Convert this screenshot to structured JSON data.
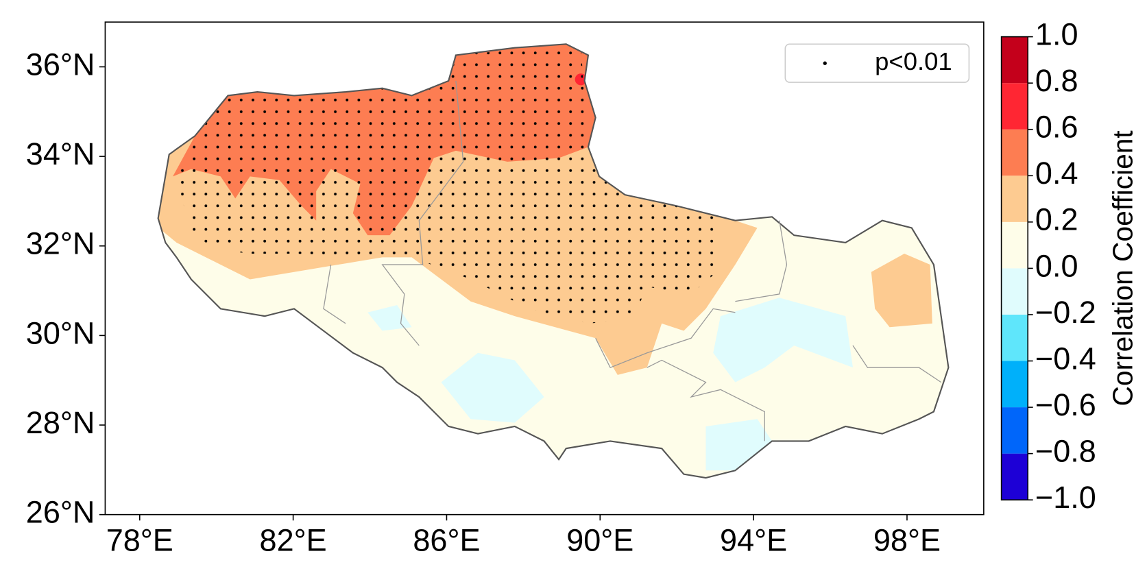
{
  "chart_data": {
    "type": "map",
    "xlim": [
      77.1,
      100
    ],
    "ylim": [
      26,
      37
    ],
    "xticks": [
      {
        "value": 78,
        "label": "78°E"
      },
      {
        "value": 82,
        "label": "82°E"
      },
      {
        "value": 86,
        "label": "86°E"
      },
      {
        "value": 90,
        "label": "90°E"
      },
      {
        "value": 94,
        "label": "94°E"
      },
      {
        "value": 98,
        "label": "98°E"
      }
    ],
    "yticks": [
      {
        "value": 26,
        "label": "26°N"
      },
      {
        "value": 28,
        "label": "28°N"
      },
      {
        "value": 30,
        "label": "30°N"
      },
      {
        "value": 32,
        "label": "32°N"
      },
      {
        "value": 34,
        "label": "34°N"
      },
      {
        "value": 36,
        "label": "36°N"
      }
    ],
    "legend": {
      "label": "p<0.01",
      "position": "upper right"
    },
    "colorbar": {
      "label": "Correlation Coefficient",
      "levels": [
        -1,
        -0.8,
        -0.6,
        -0.4,
        -0.2,
        0,
        0.2,
        0.4,
        0.6,
        0.8,
        1
      ],
      "colors": [
        "#1d00d6",
        "#0066fa",
        "#00b0fa",
        "#5fe6fb",
        "#e0fcfd",
        "#fefde9",
        "#fdcb91",
        "#fd7d52",
        "#ff2633",
        "#c4001b"
      ],
      "ticks": [
        {
          "value": -1,
          "label": "−1.0"
        },
        {
          "value": -0.8,
          "label": "−0.8"
        },
        {
          "value": -0.6,
          "label": "−0.6"
        },
        {
          "value": -0.4,
          "label": "−0.4"
        },
        {
          "value": -0.2,
          "label": "−0.2"
        },
        {
          "value": 0,
          "label": "0.0"
        },
        {
          "value": 0.2,
          "label": "0.2"
        },
        {
          "value": 0.4,
          "label": "0.4"
        },
        {
          "value": 0.6,
          "label": "0.6"
        },
        {
          "value": 0.8,
          "label": "0.8"
        },
        {
          "value": 1,
          "label": "1.0"
        }
      ]
    }
  }
}
